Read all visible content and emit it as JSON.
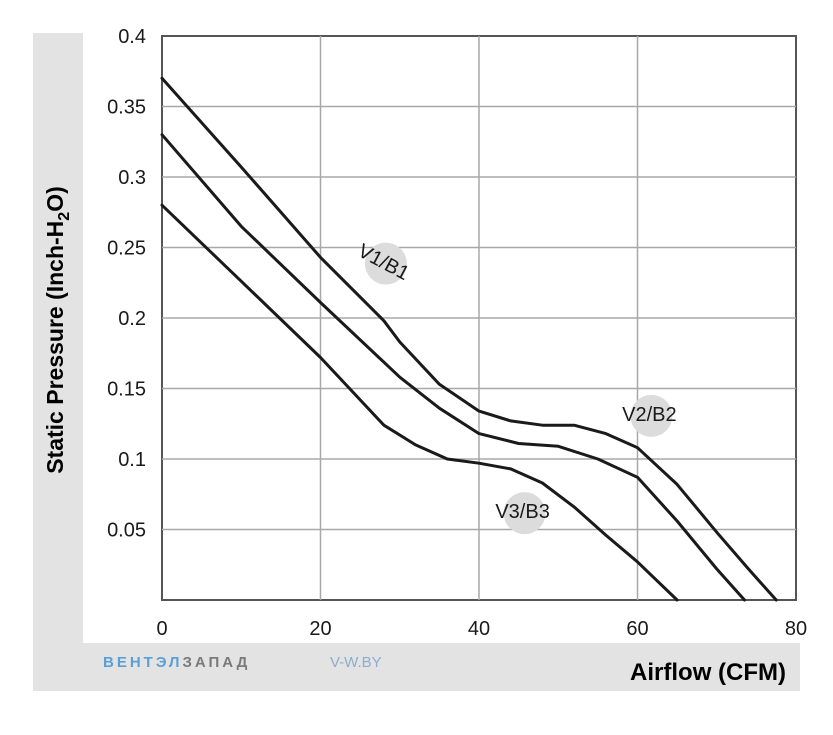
{
  "chart_data": {
    "type": "line",
    "title": "",
    "xlabel": "Airflow (CFM)",
    "ylabel_main": "Static Pressure (Inch-H",
    "ylabel_sub": "2",
    "ylabel_end": "O)",
    "xlim": [
      0,
      80
    ],
    "ylim": [
      0,
      0.4
    ],
    "x_ticks": [
      "0",
      "20",
      "40",
      "60",
      "80"
    ],
    "y_ticks": [
      "0.05",
      "0.1",
      "0.15",
      "0.2",
      "0.25",
      "0.3",
      "0.35",
      "0.4"
    ],
    "grid": true,
    "series": [
      {
        "name": "V1/B1",
        "points": [
          [
            0,
            0.37
          ],
          [
            10,
            0.307
          ],
          [
            20,
            0.243
          ],
          [
            28,
            0.198
          ],
          [
            30,
            0.183
          ],
          [
            35,
            0.153
          ],
          [
            40,
            0.134
          ],
          [
            44,
            0.127
          ],
          [
            48,
            0.124
          ],
          [
            52,
            0.124
          ],
          [
            56,
            0.118
          ],
          [
            60,
            0.108
          ],
          [
            65,
            0.082
          ],
          [
            70,
            0.048
          ],
          [
            74,
            0.022
          ],
          [
            77.5,
            0.0
          ]
        ]
      },
      {
        "name": "V2/B2",
        "points": [
          [
            0,
            0.33
          ],
          [
            10,
            0.265
          ],
          [
            20,
            0.211
          ],
          [
            30,
            0.158
          ],
          [
            35,
            0.136
          ],
          [
            40,
            0.118
          ],
          [
            45,
            0.111
          ],
          [
            50,
            0.109
          ],
          [
            55,
            0.1
          ],
          [
            60,
            0.087
          ],
          [
            65,
            0.056
          ],
          [
            70,
            0.022
          ],
          [
            73.5,
            0.0
          ]
        ]
      },
      {
        "name": "V3/B3",
        "points": [
          [
            0,
            0.28
          ],
          [
            10,
            0.226
          ],
          [
            20,
            0.172
          ],
          [
            28,
            0.124
          ],
          [
            32,
            0.11
          ],
          [
            36,
            0.1
          ],
          [
            40,
            0.097
          ],
          [
            44,
            0.093
          ],
          [
            48,
            0.083
          ],
          [
            52,
            0.066
          ],
          [
            56,
            0.046
          ],
          [
            60,
            0.027
          ],
          [
            65,
            0.0
          ]
        ]
      }
    ],
    "series_label_positions": {
      "V1/B1": [
        28,
        0.24
      ],
      "V2/B2": [
        61.5,
        0.132
      ],
      "V3/B3": [
        45.5,
        0.063
      ]
    },
    "colors": {
      "line": "#1a1a1a",
      "grid": "#a8a8a8",
      "frame": "#555555",
      "band": "#e3e3e3",
      "label_bubble": "#dcdcdc"
    }
  },
  "brand": {
    "part1": "ВЕНТЭЛ",
    "part2": "ЗАПАД",
    "site": "V-W.BY",
    "color1": "#5a9fd6",
    "color2": "#7a7a7a"
  }
}
